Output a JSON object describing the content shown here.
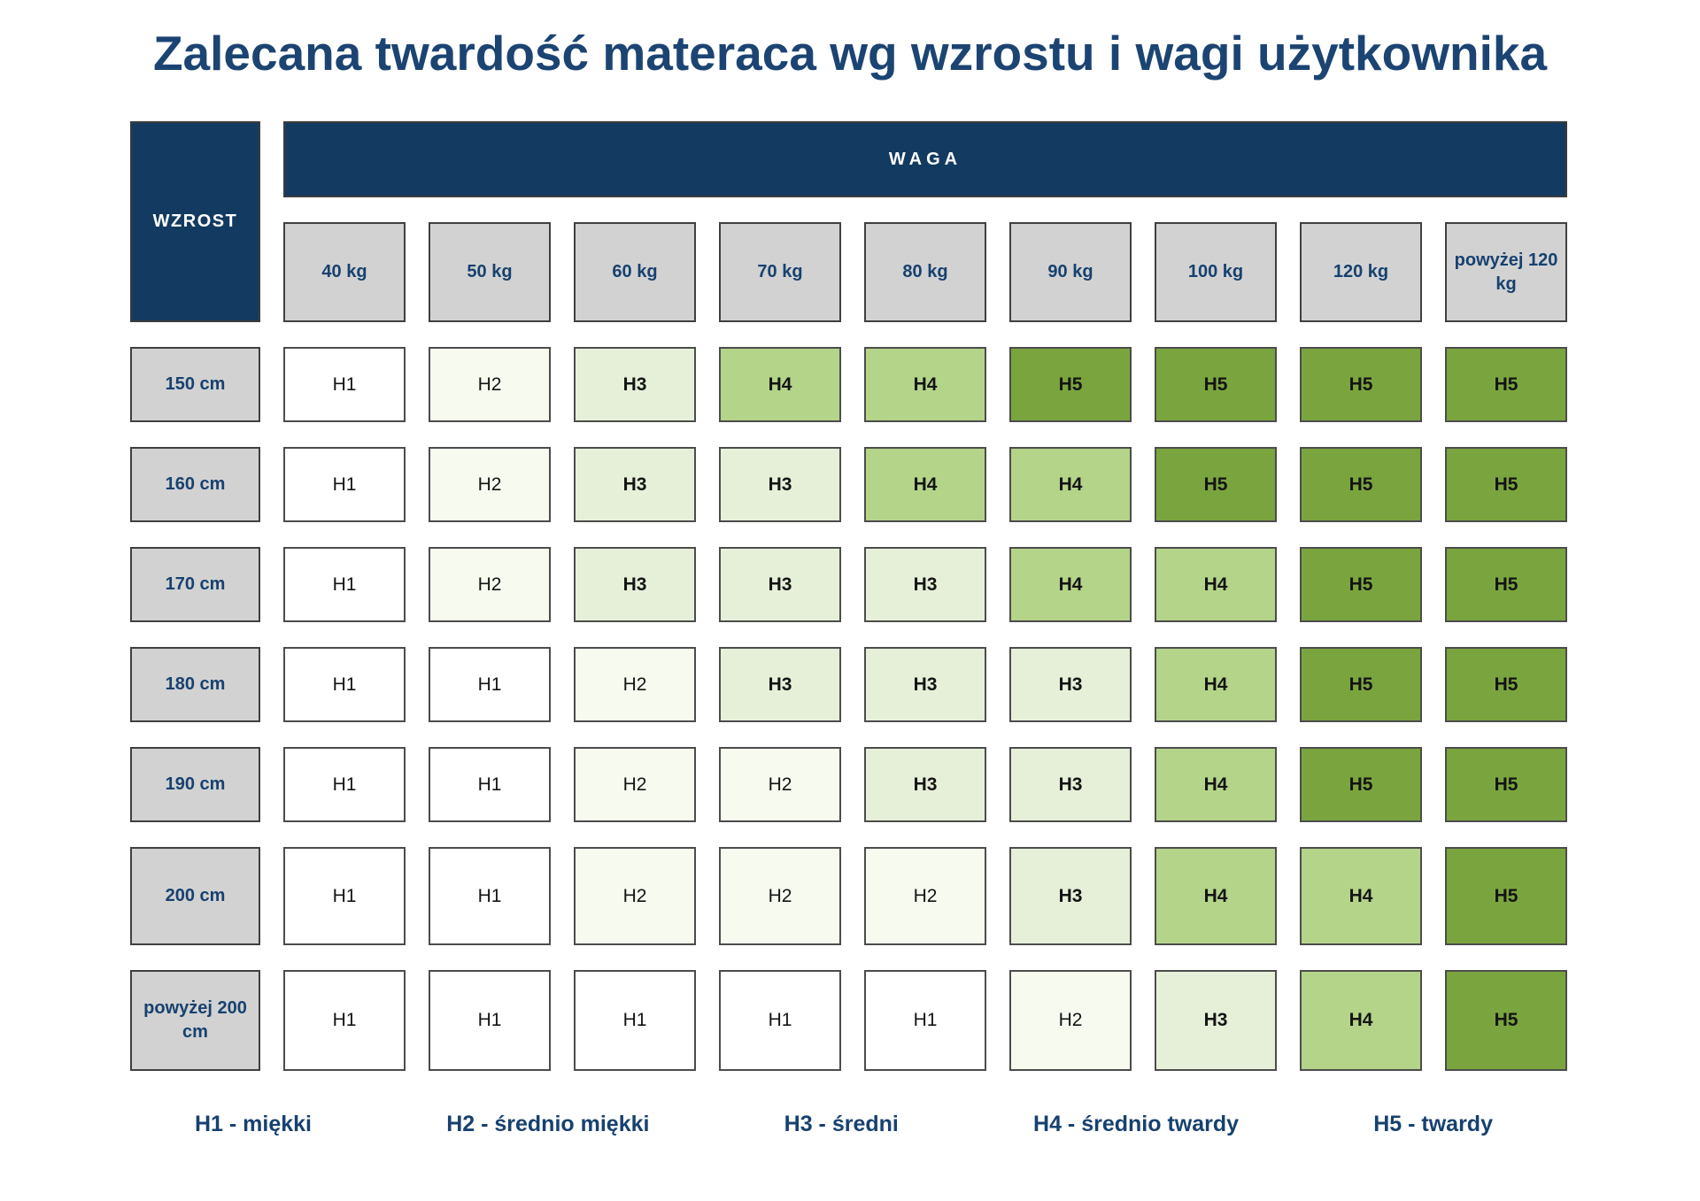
{
  "title": "Zalecana twardość materaca wg wzrostu i wagi użytkownika",
  "chart_data": {
    "type": "heatmap",
    "x_header": "WAGA",
    "y_header": "WZROST",
    "columns": [
      "40 kg",
      "50 kg",
      "60 kg",
      "70 kg",
      "80 kg",
      "90 kg",
      "100 kg",
      "120 kg",
      "powyżej 120 kg"
    ],
    "rows": [
      "150 cm",
      "160 cm",
      "170 cm",
      "180 cm",
      "190 cm",
      "200 cm",
      "powyżej 200 cm"
    ],
    "values": [
      [
        "H1",
        "H2",
        "H3",
        "H4",
        "H4",
        "H5",
        "H5",
        "H5",
        "H5"
      ],
      [
        "H1",
        "H2",
        "H3",
        "H3",
        "H4",
        "H4",
        "H5",
        "H5",
        "H5"
      ],
      [
        "H1",
        "H2",
        "H3",
        "H3",
        "H3",
        "H4",
        "H4",
        "H5",
        "H5"
      ],
      [
        "H1",
        "H1",
        "H2",
        "H3",
        "H3",
        "H3",
        "H4",
        "H5",
        "H5"
      ],
      [
        "H1",
        "H1",
        "H2",
        "H2",
        "H3",
        "H3",
        "H4",
        "H5",
        "H5"
      ],
      [
        "H1",
        "H1",
        "H2",
        "H2",
        "H2",
        "H3",
        "H4",
        "H4",
        "H5"
      ],
      [
        "H1",
        "H1",
        "H1",
        "H1",
        "H1",
        "H2",
        "H3",
        "H4",
        "H5"
      ]
    ],
    "level_colors": {
      "H1": "#ffffff",
      "H2": "#f6faef",
      "H3": "#e6f0d9",
      "H4": "#b4d489",
      "H5": "#7aa53e"
    },
    "bold_levels": [
      "H3",
      "H4",
      "H5"
    ],
    "legend": [
      "H1 - miękki",
      "H2 - średnio miękki",
      "H3 - średni",
      "H4 - średnio twardy",
      "H5 - twardy"
    ]
  },
  "colors": {
    "navy_header": "#133a60",
    "title_navy": "#1c4473",
    "label_navy": "#17416f",
    "header_gray": "#d2d2d2",
    "cell_border": "#4c4c4c"
  }
}
